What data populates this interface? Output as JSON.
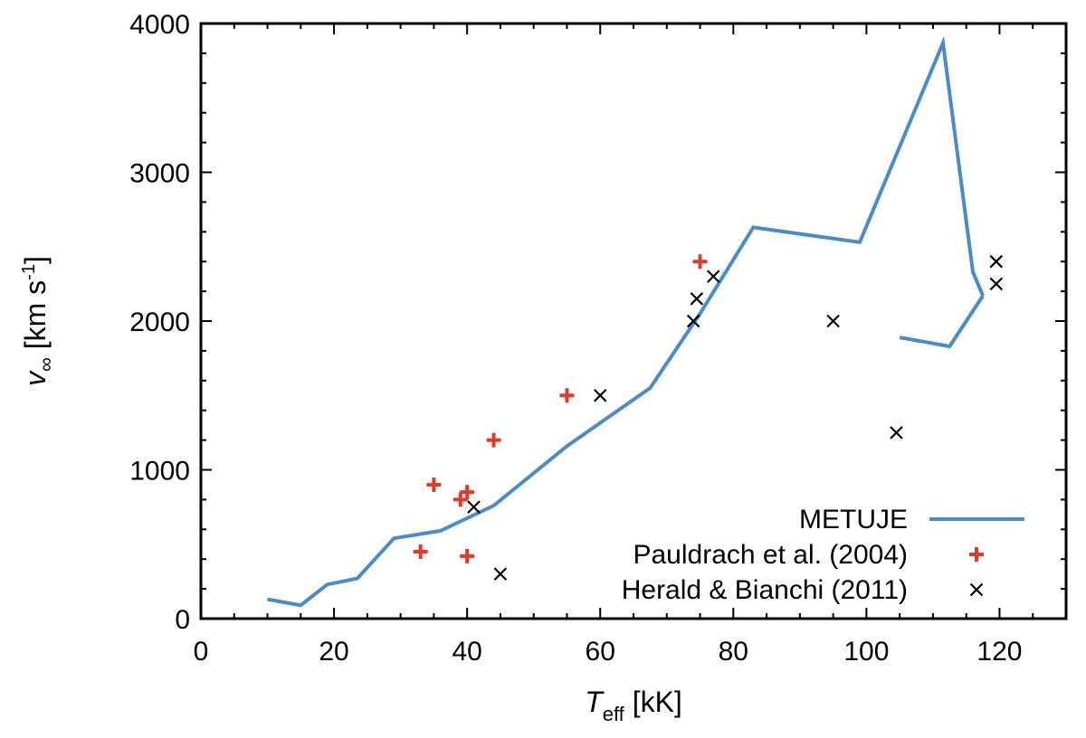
{
  "chart_data": {
    "type": "scatter",
    "xlabel": {
      "symbol": "T",
      "subscript": "eff",
      "unit": "[kK]"
    },
    "ylabel": {
      "symbol": "v",
      "subscript": "∞",
      "unit": "[km s",
      "exponent": "-1",
      "unit_end": "]"
    },
    "xlim": [
      0,
      130
    ],
    "ylim": [
      0,
      4000
    ],
    "xticks": [
      0,
      20,
      40,
      60,
      80,
      100,
      120
    ],
    "yticks": [
      0,
      1000,
      2000,
      3000,
      4000
    ],
    "xtick_labels": [
      "0",
      "20",
      "40",
      "60",
      "80",
      "100",
      "120"
    ],
    "ytick_labels": [
      "0",
      "1000",
      "2000",
      "3000",
      "4000"
    ],
    "x_minor_step": 5,
    "y_minor_step": 200,
    "legend_position": "bottom-right",
    "series": [
      {
        "name": "METUJE",
        "kind": "line",
        "color": "#4a8bc9",
        "segments": [
          {
            "x": [
              10,
              15,
              19,
              23.5,
              29,
              36,
              44,
              55,
              67.5,
              75,
              83,
              99,
              111.5,
              116,
              117.5
            ],
            "y": [
              130,
              90,
              230,
              270,
              540,
              590,
              760,
              1160,
              1550,
              2050,
              2630,
              2530,
              3870,
              2330,
              2170
            ]
          },
          {
            "x": [
              117.5,
              112.5,
              105
            ],
            "y": [
              2170,
              1830,
              1890
            ]
          }
        ]
      },
      {
        "name": "Pauldrach et al. (2004)",
        "kind": "plus",
        "color": "#e03a2a",
        "x": [
          33,
          35,
          39,
          40,
          40,
          44,
          55,
          75
        ],
        "y": [
          450,
          900,
          800,
          850,
          420,
          1200,
          1500,
          2400
        ]
      },
      {
        "name": "Herald & Bianchi (2011)",
        "kind": "cross",
        "color": "#000000",
        "x": [
          41,
          45,
          60,
          74,
          74.5,
          77,
          95,
          104.5,
          119.5,
          119.5
        ],
        "y": [
          750,
          300,
          1500,
          2000,
          2150,
          2300,
          2000,
          1250,
          2400,
          2250
        ]
      }
    ]
  }
}
